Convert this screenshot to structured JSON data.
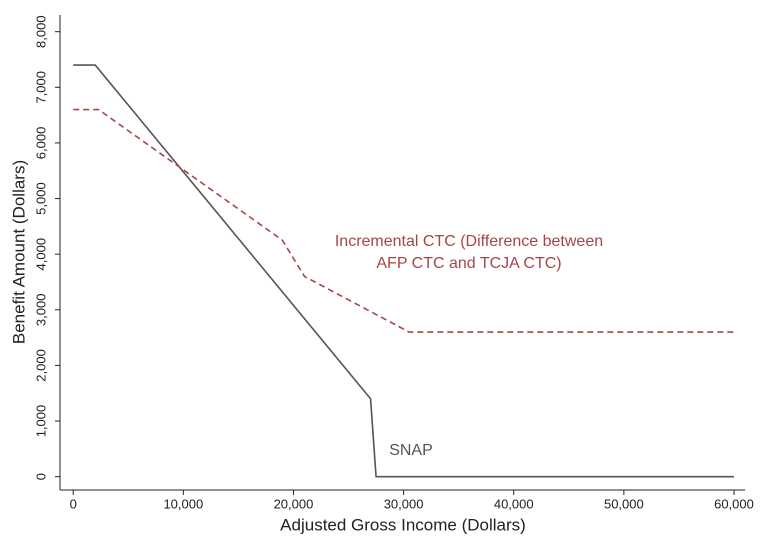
{
  "chart_data": {
    "type": "line",
    "x_label": "Adjusted Gross Income (Dollars)",
    "y_label": "Benefit Amount (Dollars)",
    "series": [
      {
        "name": "SNAP",
        "color": "#555555",
        "dash": false,
        "x": [
          0,
          2000,
          27000,
          27500,
          60000
        ],
        "values": [
          7400,
          7400,
          1400,
          0,
          0
        ]
      },
      {
        "name": "Incremental CTC (Difference between AFP CTC and TCJA CTC)",
        "color": "#a84545",
        "dash": true,
        "x": [
          0,
          2300,
          19000,
          21000,
          30500,
          60000
        ],
        "values": [
          6600,
          6600,
          4250,
          3600,
          2600,
          2600
        ]
      }
    ],
    "annotations": [
      {
        "series": 1,
        "lines": [
          "Incremental CTC (Difference between",
          "AFP CTC and TCJA CTC)"
        ]
      },
      {
        "series": 0,
        "lines": [
          "SNAP"
        ]
      }
    ],
    "xlim": [
      -1200,
      61000
    ],
    "ylim": [
      -240,
      8300
    ],
    "xticks": [
      0,
      {
        "value": 10000,
        "label": "10,000"
      },
      {
        "value": 20000,
        "label": "20,000"
      },
      {
        "value": 30000,
        "label": "30,000"
      },
      {
        "value": 40000,
        "label": "40,000"
      },
      {
        "value": 50000,
        "label": "50,000"
      },
      {
        "value": 60000,
        "label": "60,000"
      }
    ],
    "yticks": [
      0,
      {
        "value": 1000,
        "label": "1,000"
      },
      {
        "value": 2000,
        "label": "2,000"
      },
      {
        "value": 3000,
        "label": "3,000"
      },
      {
        "value": 4000,
        "label": "4,000"
      },
      {
        "value": 5000,
        "label": "5,000"
      },
      {
        "value": 6000,
        "label": "6,000"
      },
      {
        "value": 7000,
        "label": "7,000"
      },
      {
        "value": 8000,
        "label": "8,000"
      }
    ],
    "grid": false
  }
}
